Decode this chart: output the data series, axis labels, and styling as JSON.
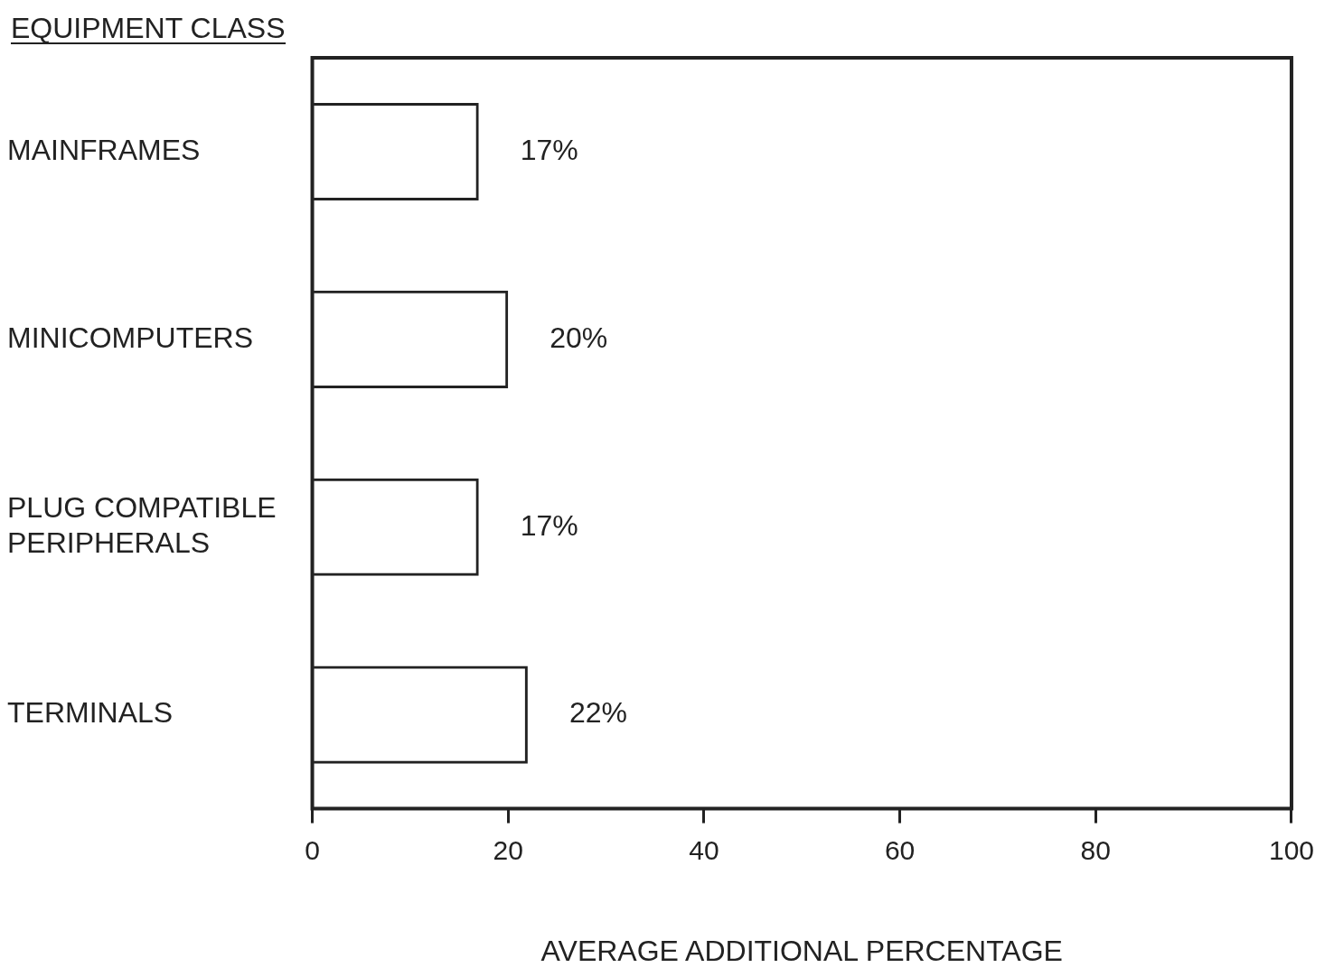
{
  "chart_data": {
    "type": "bar",
    "orientation": "horizontal",
    "ylabel": "EQUIPMENT CLASS",
    "xlabel": "AVERAGE ADDITIONAL PERCENTAGE",
    "categories": [
      "MAINFRAMES",
      "MINICOMPUTERS",
      "PLUG COMPATIBLE PERIPHERALS",
      "TERMINALS"
    ],
    "values": [
      17,
      20,
      17,
      22
    ],
    "color": "#222222",
    "value_labels": [
      "17%",
      "20%",
      "17%",
      "22%"
    ],
    "xlim": [
      0,
      100
    ],
    "xticks": [
      0,
      20,
      40,
      60,
      80,
      100
    ],
    "grid": false,
    "legend": false
  }
}
